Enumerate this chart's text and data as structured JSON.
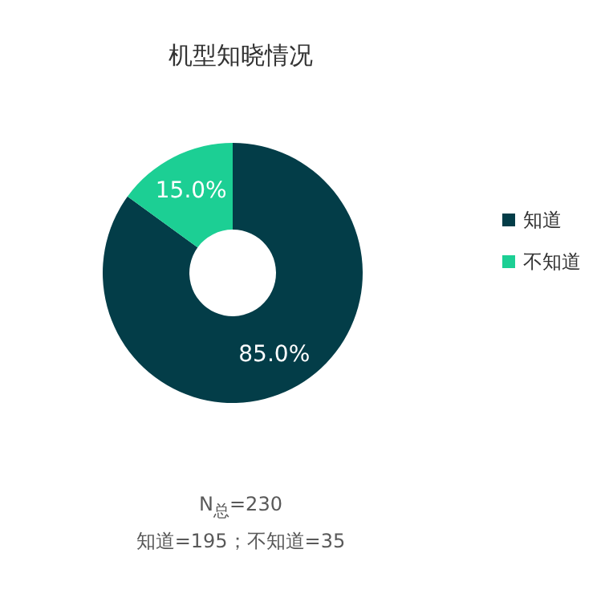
{
  "chart_data": {
    "type": "donut",
    "title": "机型知晓情况",
    "categories": [
      "知道",
      "不知道"
    ],
    "values": [
      85.0,
      15.0
    ],
    "value_labels": [
      "85.0%",
      "15.0%"
    ],
    "colors": [
      "#033d48",
      "#1ccf94"
    ],
    "legend": "right",
    "annotations": [
      "N$_{总}$=230",
      "知道=195；不知道=35"
    ]
  }
}
